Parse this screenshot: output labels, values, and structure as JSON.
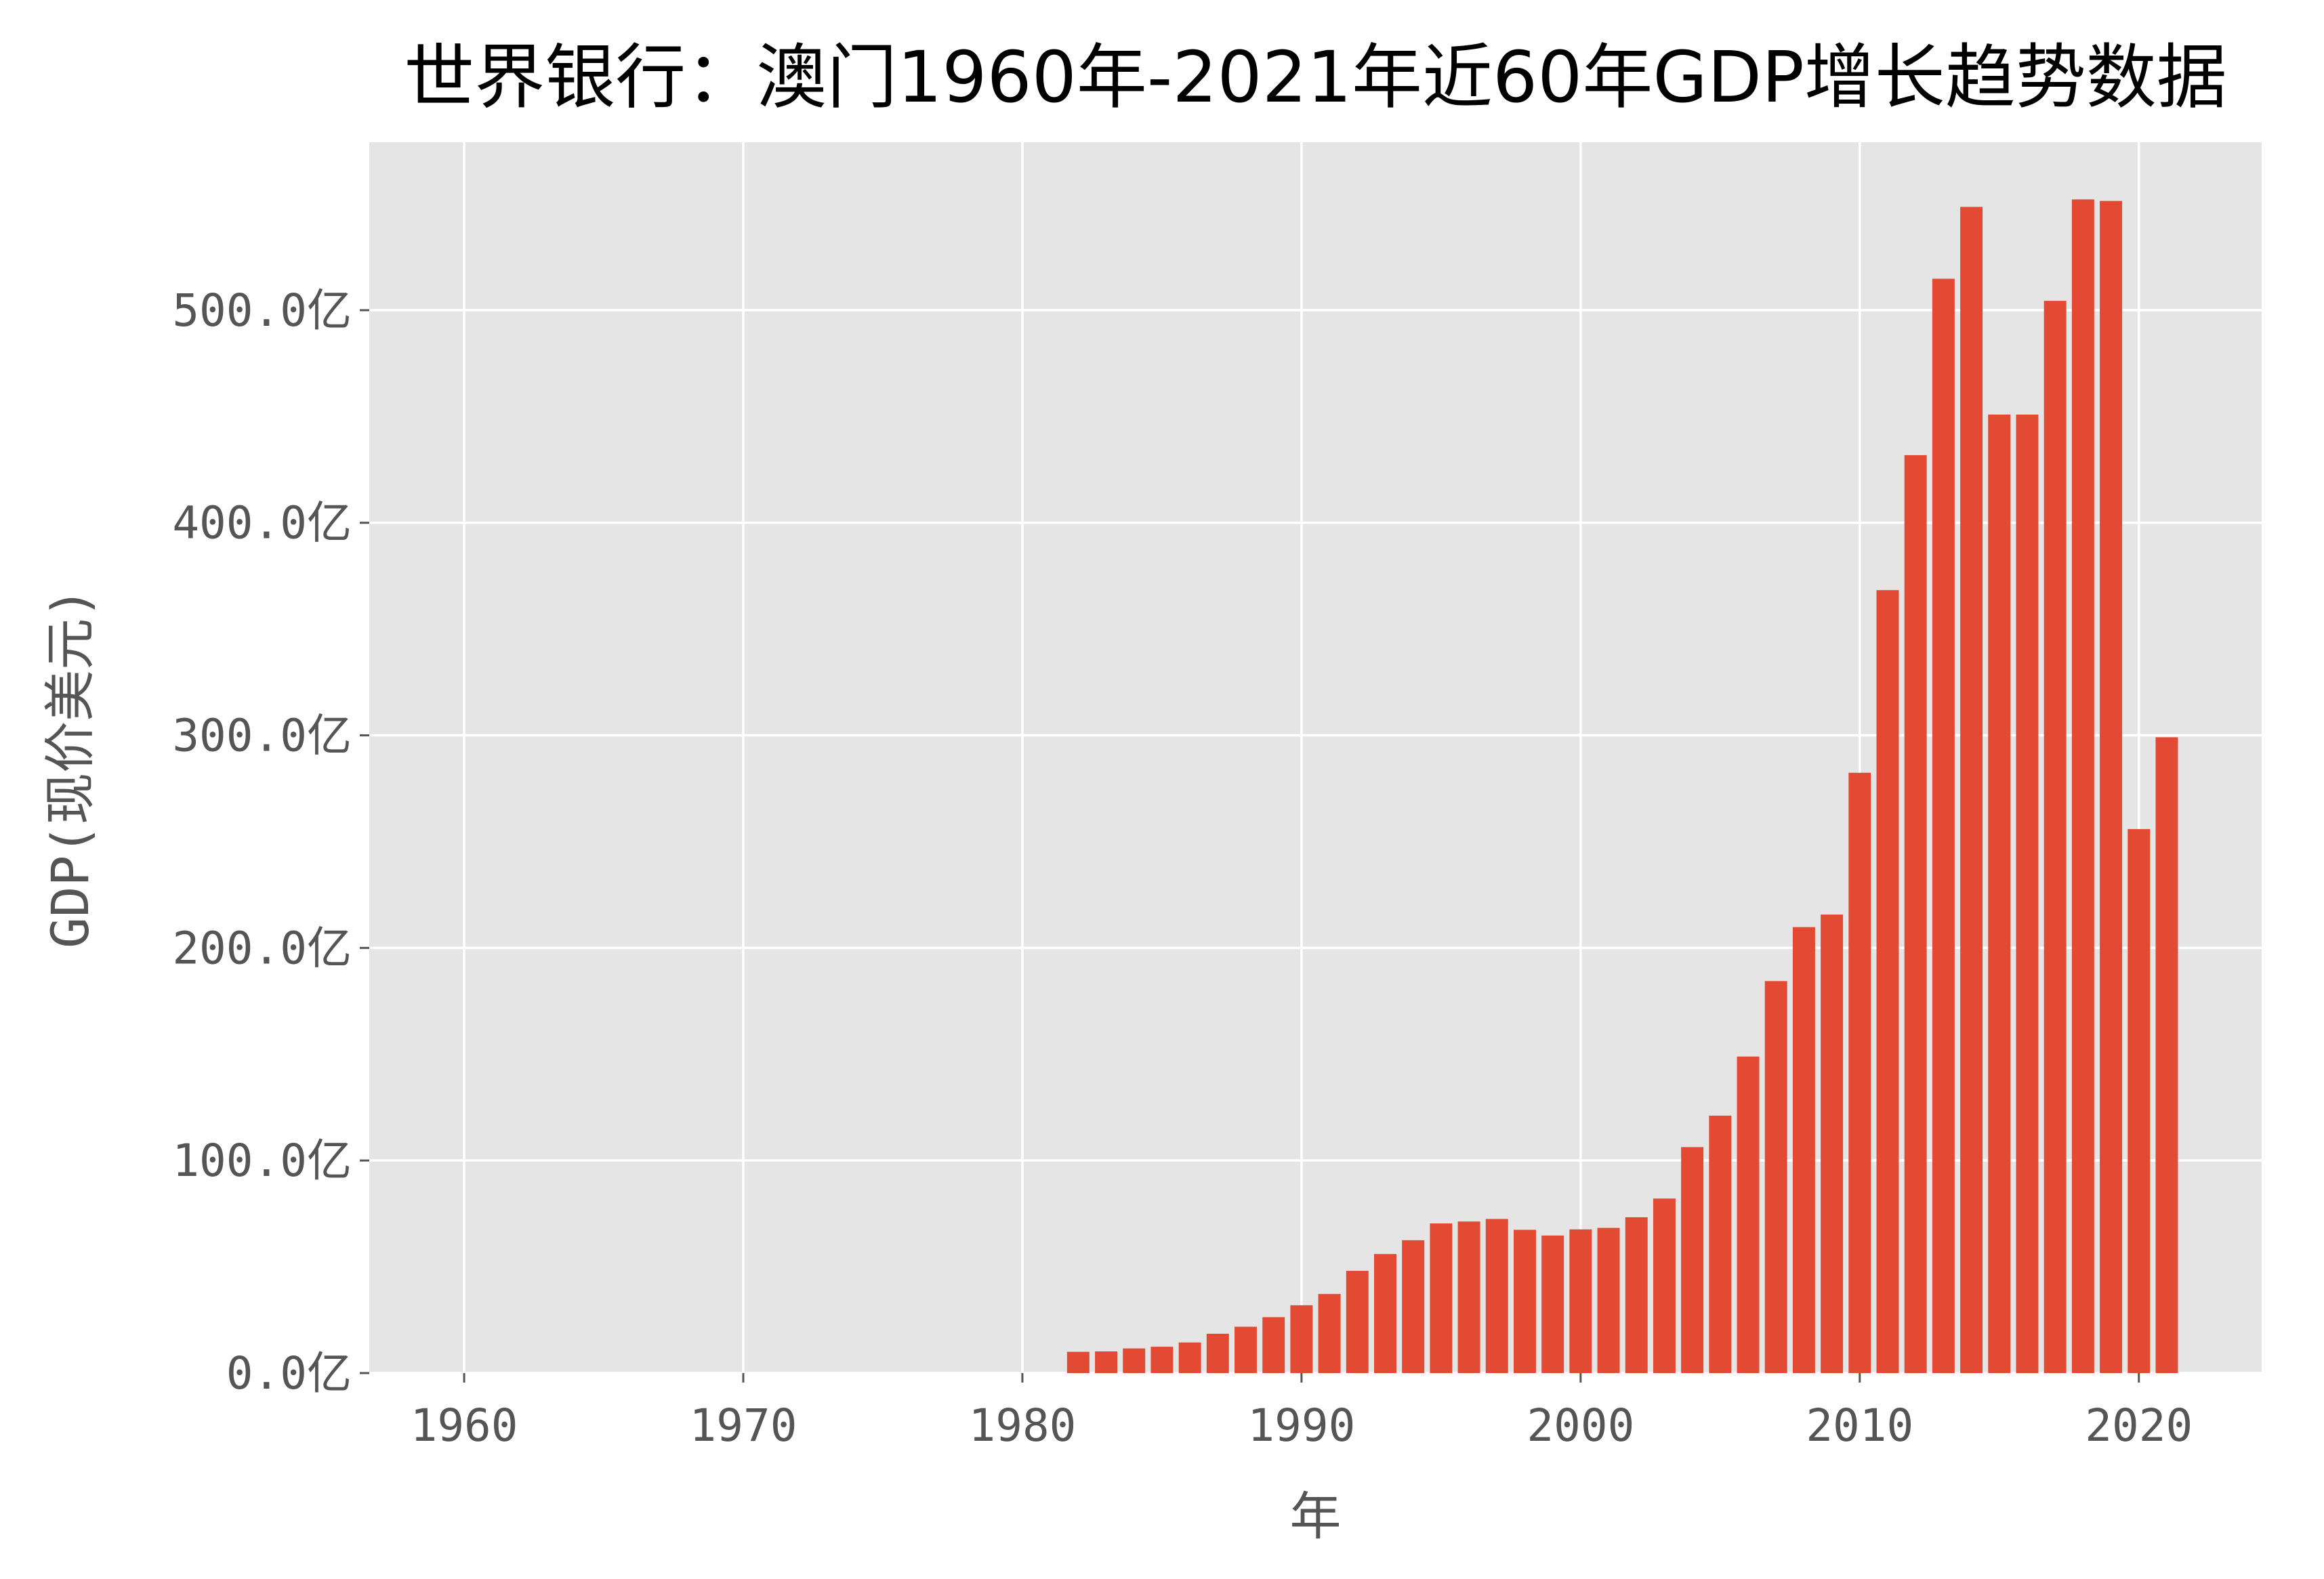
{
  "chart_data": {
    "type": "bar",
    "title": "世界银行：澳门1960年-2021年近60年GDP增长趋势数据",
    "xlabel": "年",
    "ylabel": "GDP(现价美元)",
    "x_ticks": [
      1960,
      1970,
      1980,
      1990,
      2000,
      2010,
      2020
    ],
    "y_ticks": [
      0,
      100,
      200,
      300,
      400,
      500
    ],
    "y_tick_labels": [
      "0.0亿",
      "100.0亿",
      "200.0亿",
      "300.0亿",
      "400.0亿",
      "500.0亿"
    ],
    "xlim": [
      1956.6,
      2024.4
    ],
    "ylim": [
      0,
      579
    ],
    "y_unit": "亿美元",
    "grid": true,
    "background": "#E5E5E5",
    "bar_color": "#E24A33",
    "x": [
      1982,
      1983,
      1984,
      1985,
      1986,
      1987,
      1988,
      1989,
      1990,
      1991,
      1992,
      1993,
      1994,
      1995,
      1996,
      1997,
      1998,
      1999,
      2000,
      2001,
      2002,
      2003,
      2004,
      2005,
      2006,
      2007,
      2008,
      2009,
      2010,
      2011,
      2012,
      2013,
      2014,
      2015,
      2016,
      2017,
      2018,
      2019,
      2020,
      2021
    ],
    "values": [
      10.0,
      10.2,
      11.6,
      12.4,
      14.4,
      18.5,
      21.8,
      26.3,
      31.9,
      37.2,
      48.1,
      56.0,
      62.5,
      70.4,
      71.3,
      72.5,
      67.4,
      64.7,
      67.6,
      68.3,
      73.3,
      82.1,
      106.3,
      121.1,
      148.9,
      184.4,
      209.8,
      215.7,
      282.4,
      368.3,
      431.8,
      514.8,
      548.6,
      450.9,
      450.9,
      504.4,
      552.1,
      551.4,
      255.9,
      299.1
    ]
  }
}
